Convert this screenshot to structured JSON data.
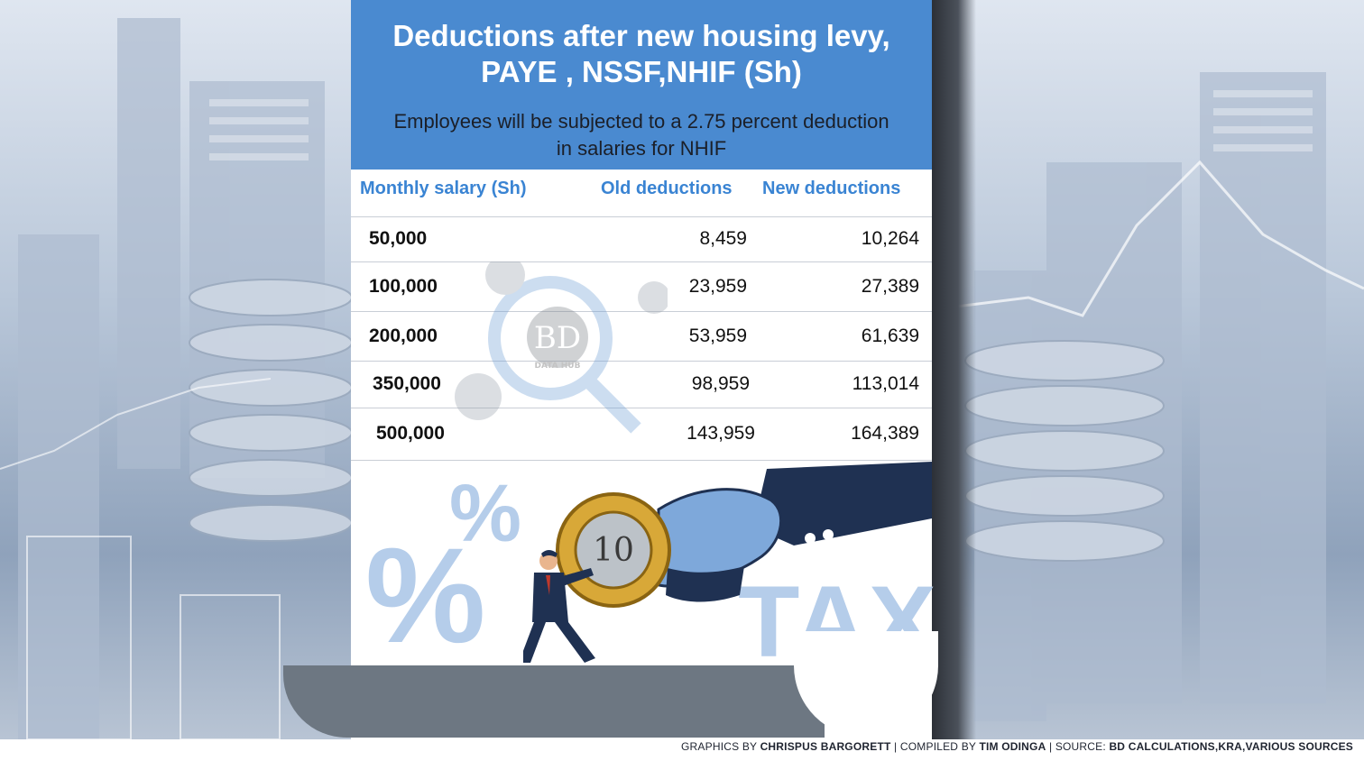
{
  "chart_data": {
    "type": "table",
    "title": "Deductions after  new housing levy,\nPAYE , NSSF,NHIF  (Sh)",
    "subtitle": "Employees will be subjected to a 2.75 percent deduction in salaries for NHIF",
    "columns": [
      "Monthly salary (Sh)",
      "Old deductions",
      "New deductions"
    ],
    "rows": [
      {
        "salary": "50,000",
        "old": "8,459",
        "new": "10,264"
      },
      {
        "salary": "100,000",
        "old": "23,959",
        "new": "27,389"
      },
      {
        "salary": "200,000",
        "old": "53,959",
        "new": "61,639"
      },
      {
        "salary": "350,000",
        "old": "98,959",
        "new": "113,014"
      },
      {
        "salary": "500,000",
        "old": "143,959",
        "new": "164,389"
      }
    ]
  },
  "decor": {
    "percent_big": "%",
    "percent_small": "%",
    "tax": "TAX",
    "coin_value": "10",
    "watermark": "BD",
    "watermark_sub": "DATA HUB"
  },
  "credits": {
    "graphics_prefix": "GRAPHICS BY ",
    "graphics_by": "CHRISPUS BARGORETT",
    "compiled_prefix": " | COMPILED BY ",
    "compiled_by": "TIM ODINGA",
    "source_prefix": "  |  SOURCE: ",
    "source": "BD CALCULATIONS,KRA,VARIOUS SOURCES"
  },
  "colors": {
    "header_bg": "#4a8ad0",
    "column_header": "#3a84d3",
    "accent_light": "#b5cdea",
    "sleeve": "#1f3152"
  }
}
